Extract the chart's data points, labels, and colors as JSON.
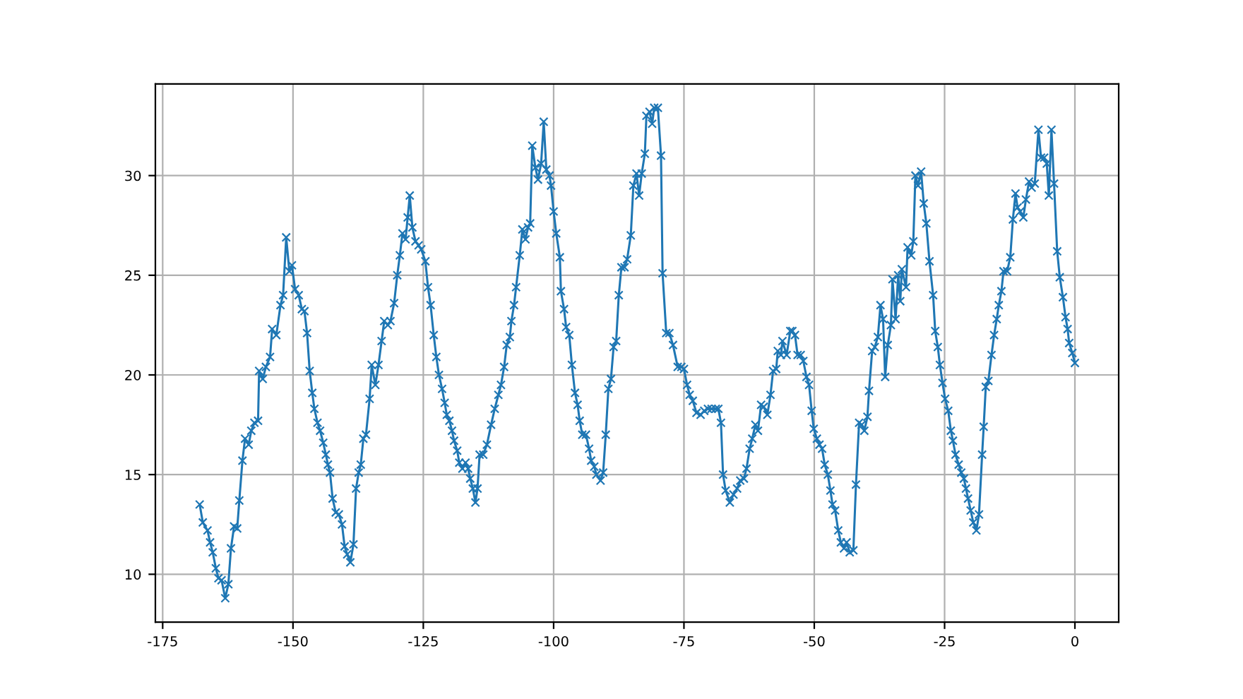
{
  "chart_data": {
    "type": "line",
    "marker": "cross",
    "grid": true,
    "xlim": [
      -176.4,
      8.4
    ],
    "ylim": [
      7.6,
      34.6
    ],
    "xticks": [
      -175,
      -150,
      -125,
      -100,
      -75,
      -50,
      -25,
      0
    ],
    "yticks": [
      10,
      15,
      20,
      25,
      30
    ],
    "series": [
      {
        "color": "#1f77b4",
        "x": [
          -167.9,
          -167.3,
          -166.4,
          -165.9,
          -165.4,
          -164.8,
          -164.3,
          -163.7,
          -163.0,
          -162.4,
          -161.9,
          -161.3,
          -160.7,
          -160.3,
          -159.7,
          -159.2,
          -158.5,
          -158.0,
          -157.4,
          -156.7,
          -156.5,
          -155.8,
          -155.2,
          -154.4,
          -154.0,
          -153.2,
          -152.4,
          -151.9,
          -151.3,
          -150.7,
          -150.2,
          -149.6,
          -148.9,
          -148.3,
          -147.8,
          -147.3,
          -146.8,
          -146.3,
          -145.9,
          -145.3,
          -144.8,
          -144.2,
          -143.7,
          -143.3,
          -142.9,
          -142.4,
          -141.8,
          -141.2,
          -140.6,
          -140.1,
          -139.6,
          -139.0,
          -138.4,
          -137.9,
          -137.4,
          -137.0,
          -136.5,
          -136.0,
          -135.3,
          -134.9,
          -134.2,
          -133.6,
          -133.0,
          -132.5,
          -131.8,
          -131.3,
          -130.6,
          -130.0,
          -129.5,
          -129.0,
          -128.4,
          -128.0,
          -127.6,
          -127.1,
          -126.5,
          -125.9,
          -125.4,
          -124.6,
          -124.1,
          -123.6,
          -123.0,
          -122.5,
          -122.0,
          -121.4,
          -120.9,
          -120.5,
          -120.0,
          -119.5,
          -119.1,
          -118.5,
          -118.1,
          -117.5,
          -116.9,
          -116.4,
          -116.0,
          -115.5,
          -115.0,
          -114.6,
          -114.2,
          -113.5,
          -112.8,
          -112.0,
          -111.3,
          -110.6,
          -110.1,
          -109.5,
          -109.0,
          -108.4,
          -108.1,
          -107.6,
          -107.2,
          -106.5,
          -106.0,
          -105.4,
          -104.9,
          -104.5,
          -104.1,
          -103.5,
          -103.0,
          -102.4,
          -101.9,
          -101.4,
          -100.8,
          -100.5,
          -100.0,
          -99.5,
          -98.8,
          -98.6,
          -98.0,
          -97.6,
          -97.0,
          -96.5,
          -95.9,
          -95.4,
          -95.0,
          -94.5,
          -93.8,
          -93.2,
          -92.8,
          -92.2,
          -91.8,
          -91.0,
          -90.5,
          -90.0,
          -89.5,
          -89.0,
          -88.5,
          -88.0,
          -87.5,
          -87.0,
          -86.4,
          -85.9,
          -85.2,
          -84.7,
          -84.1,
          -83.6,
          -83.1,
          -82.5,
          -82.2,
          -81.6,
          -81.1,
          -80.7,
          -80.0,
          -79.4,
          -79.1,
          -78.4,
          -77.8,
          -77.1,
          -76.2,
          -75.5,
          -75.0,
          -74.4,
          -73.9,
          -73.3,
          -72.6,
          -71.8,
          -71.1,
          -70.4,
          -69.7,
          -68.9,
          -68.4,
          -67.9,
          -67.5,
          -67.0,
          -66.2,
          -65.5,
          -64.8,
          -64.2,
          -63.5,
          -63.0,
          -62.4,
          -61.9,
          -61.3,
          -60.8,
          -60.2,
          -59.7,
          -59.0,
          -58.4,
          -57.9,
          -57.3,
          -57.0,
          -56.4,
          -56.1,
          -55.3,
          -54.6,
          -54.2,
          -53.7,
          -53.2,
          -52.6,
          -52.1,
          -51.5,
          -51.0,
          -50.5,
          -50.1,
          -49.5,
          -49.0,
          -48.5,
          -48.0,
          -47.4,
          -46.9,
          -46.5,
          -46.0,
          -45.4,
          -44.9,
          -44.3,
          -43.8,
          -43.2,
          -42.5,
          -42.0,
          -41.4,
          -40.9,
          -40.4,
          -39.8,
          -39.5,
          -38.9,
          -38.4,
          -37.8,
          -37.3,
          -36.8,
          -36.4,
          -35.9,
          -35.3,
          -35.0,
          -34.4,
          -33.9,
          -33.5,
          -33.2,
          -32.4,
          -32.1,
          -31.4,
          -31.0,
          -30.6,
          -30.1,
          -29.5,
          -29.0,
          -28.5,
          -27.9,
          -27.2,
          -26.8,
          -26.3,
          -25.9,
          -25.4,
          -24.9,
          -24.3,
          -23.8,
          -23.4,
          -22.9,
          -22.3,
          -21.8,
          -21.3,
          -20.9,
          -20.5,
          -20.0,
          -19.5,
          -18.9,
          -18.4,
          -17.8,
          -17.5,
          -17.1,
          -16.6,
          -16.0,
          -15.5,
          -15.0,
          -14.6,
          -14.1,
          -13.7,
          -13.0,
          -12.4,
          -11.9,
          -11.4,
          -11.0,
          -10.5,
          -9.9,
          -9.4,
          -8.8,
          -8.3,
          -7.7,
          -7.0,
          -6.5,
          -5.9,
          -5.4,
          -5.0,
          -4.5,
          -4.0,
          -3.4,
          -2.9,
          -2.3,
          -1.8,
          -1.4,
          -1.1,
          -0.5,
          0.0
        ],
        "values": [
          13.5,
          12.6,
          12.2,
          11.6,
          11.1,
          10.3,
          9.8,
          9.7,
          8.8,
          9.5,
          11.3,
          12.4,
          12.3,
          13.7,
          15.7,
          16.8,
          16.5,
          17.2,
          17.6,
          17.7,
          20.2,
          19.8,
          20.4,
          20.9,
          22.3,
          22.0,
          23.5,
          24.0,
          26.9,
          25.2,
          25.5,
          24.3,
          24.0,
          23.3,
          23.2,
          22.1,
          20.2,
          19.1,
          18.3,
          17.6,
          17.2,
          16.6,
          16.0,
          15.5,
          15.1,
          13.8,
          13.1,
          13.0,
          12.5,
          11.4,
          11.0,
          10.6,
          11.5,
          14.3,
          15.1,
          15.5,
          16.8,
          17.0,
          18.8,
          20.5,
          19.5,
          20.5,
          21.7,
          22.7,
          22.5,
          22.7,
          23.6,
          25.0,
          26.0,
          27.1,
          26.8,
          27.9,
          29.0,
          27.4,
          26.7,
          26.5,
          26.3,
          25.7,
          24.4,
          23.5,
          22.0,
          20.9,
          20.0,
          19.3,
          18.6,
          18.0,
          17.7,
          17.2,
          16.7,
          16.2,
          15.6,
          15.3,
          15.6,
          15.3,
          14.8,
          14.3,
          13.6,
          14.3,
          16.0,
          16.0,
          16.5,
          17.5,
          18.3,
          19.0,
          19.5,
          20.4,
          21.5,
          21.9,
          22.7,
          23.5,
          24.4,
          26.0,
          27.3,
          26.8,
          27.4,
          27.6,
          31.5,
          30.4,
          29.8,
          30.6,
          32.7,
          30.3,
          30.0,
          29.5,
          28.2,
          27.1,
          25.9,
          24.2,
          23.3,
          22.4,
          22.0,
          20.5,
          19.1,
          18.5,
          17.7,
          17.0,
          17.0,
          16.3,
          15.7,
          15.4,
          15.0,
          14.7,
          15.1,
          17.0,
          19.3,
          19.8,
          21.4,
          21.7,
          24.0,
          25.4,
          25.4,
          25.8,
          27.0,
          29.5,
          30.1,
          29.0,
          30.1,
          31.1,
          33.0,
          33.2,
          32.6,
          33.4,
          33.4,
          31.0,
          25.1,
          22.1,
          22.1,
          21.5,
          20.4,
          20.4,
          20.3,
          19.5,
          19.0,
          18.7,
          18.1,
          18.0,
          18.2,
          18.3,
          18.3,
          18.3,
          18.3,
          17.6,
          15.0,
          14.2,
          13.6,
          14.0,
          14.3,
          14.7,
          14.8,
          15.3,
          16.3,
          16.8,
          17.5,
          17.2,
          18.5,
          18.4,
          18.0,
          19.0,
          20.2,
          20.3,
          21.2,
          21.0,
          21.7,
          21.0,
          22.2,
          22.2,
          22.0,
          21.0,
          21.0,
          20.7,
          19.9,
          19.5,
          18.2,
          17.3,
          16.8,
          16.5,
          16.3,
          15.5,
          15.0,
          14.2,
          13.5,
          13.2,
          12.2,
          11.6,
          11.3,
          11.6,
          11.1,
          11.2,
          14.5,
          17.6,
          17.5,
          17.2,
          17.9,
          19.2,
          21.2,
          21.4,
          21.9,
          23.5,
          22.8,
          19.9,
          21.5,
          22.5,
          24.8,
          22.8,
          25.0,
          23.7,
          25.3,
          24.4,
          26.4,
          26.0,
          26.7,
          30.0,
          29.5,
          30.2,
          28.6,
          27.6,
          25.7,
          24.0,
          22.2,
          21.4,
          20.5,
          19.6,
          18.8,
          18.2,
          17.2,
          16.7,
          16.0,
          15.5,
          15.1,
          14.8,
          14.3,
          13.8,
          13.2,
          12.6,
          12.2,
          13.0,
          16.0,
          17.4,
          19.4,
          19.7,
          21.0,
          22.0,
          22.8,
          23.5,
          24.2,
          25.2,
          25.2,
          25.9,
          27.8,
          29.1,
          28.4,
          28.2,
          27.9,
          28.8,
          29.7,
          29.4,
          29.6,
          32.3,
          30.9,
          30.9,
          30.6,
          29.0,
          32.3,
          29.6,
          26.2,
          24.9,
          23.9,
          22.9,
          22.3,
          21.6,
          21.1,
          20.6
        ]
      }
    ]
  }
}
